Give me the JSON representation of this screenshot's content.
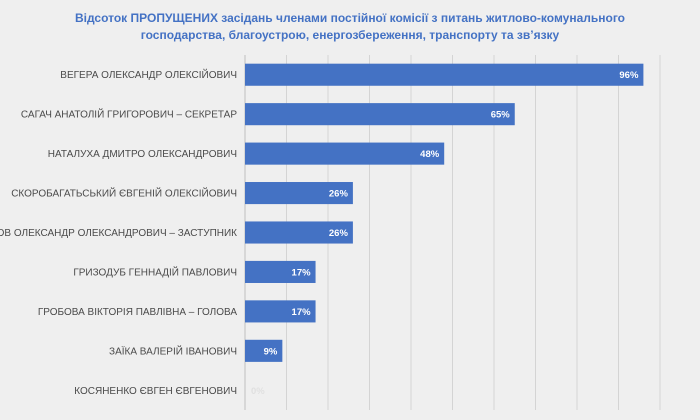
{
  "chart_data": {
    "type": "bar",
    "orientation": "horizontal",
    "title_line1": "Відсоток ПРОПУЩЕНИХ засідань членами постійної комісії  з питань житлово-комунального",
    "title_line2": "господарства, благоустрою, енергозбереження, транспорту та зв’язку",
    "categories": [
      "ВЕГЕРА ОЛЕКСАНДР ОЛЕКСІЙОВИЧ",
      "САГАЧ АНАТОЛІЙ ГРИГОРОВИЧ – СЕКРЕТАР",
      "НАТАЛУХА ДМИТРО ОЛЕКСАНДРОВИЧ",
      "СКОРОБАГАТЬСЬКИЙ ЄВГЕНІЙ ОЛЕКСІЙОВИЧ",
      "ІВАНОВ ОЛЕКСАНДР ОЛЕКСАНДРОВИЧ – ЗАСТУПНИК",
      "ГРИЗОДУБ ГЕННАДІЙ ПАВЛОВИЧ",
      "ГРОБОВА ВІКТОРІЯ ПАВЛІВНА – ГОЛОВА",
      "ЗАЇКА ВАЛЕРІЙ ІВАНОВИЧ",
      "КОСЯНЕНКО ЄВГЕН ЄВГЕНОВИЧ"
    ],
    "values": [
      96,
      65,
      48,
      26,
      26,
      17,
      17,
      9,
      0
    ],
    "value_labels": [
      "96%",
      "65%",
      "48%",
      "26%",
      "26%",
      "17%",
      "17%",
      "9%",
      "0%"
    ],
    "unit": "%",
    "xlim": [
      0,
      100
    ],
    "grid": true,
    "legend": "none",
    "bar_color": "#4472c4",
    "gridline_color": "#d4d4d4",
    "title_color": "#4472c4"
  }
}
